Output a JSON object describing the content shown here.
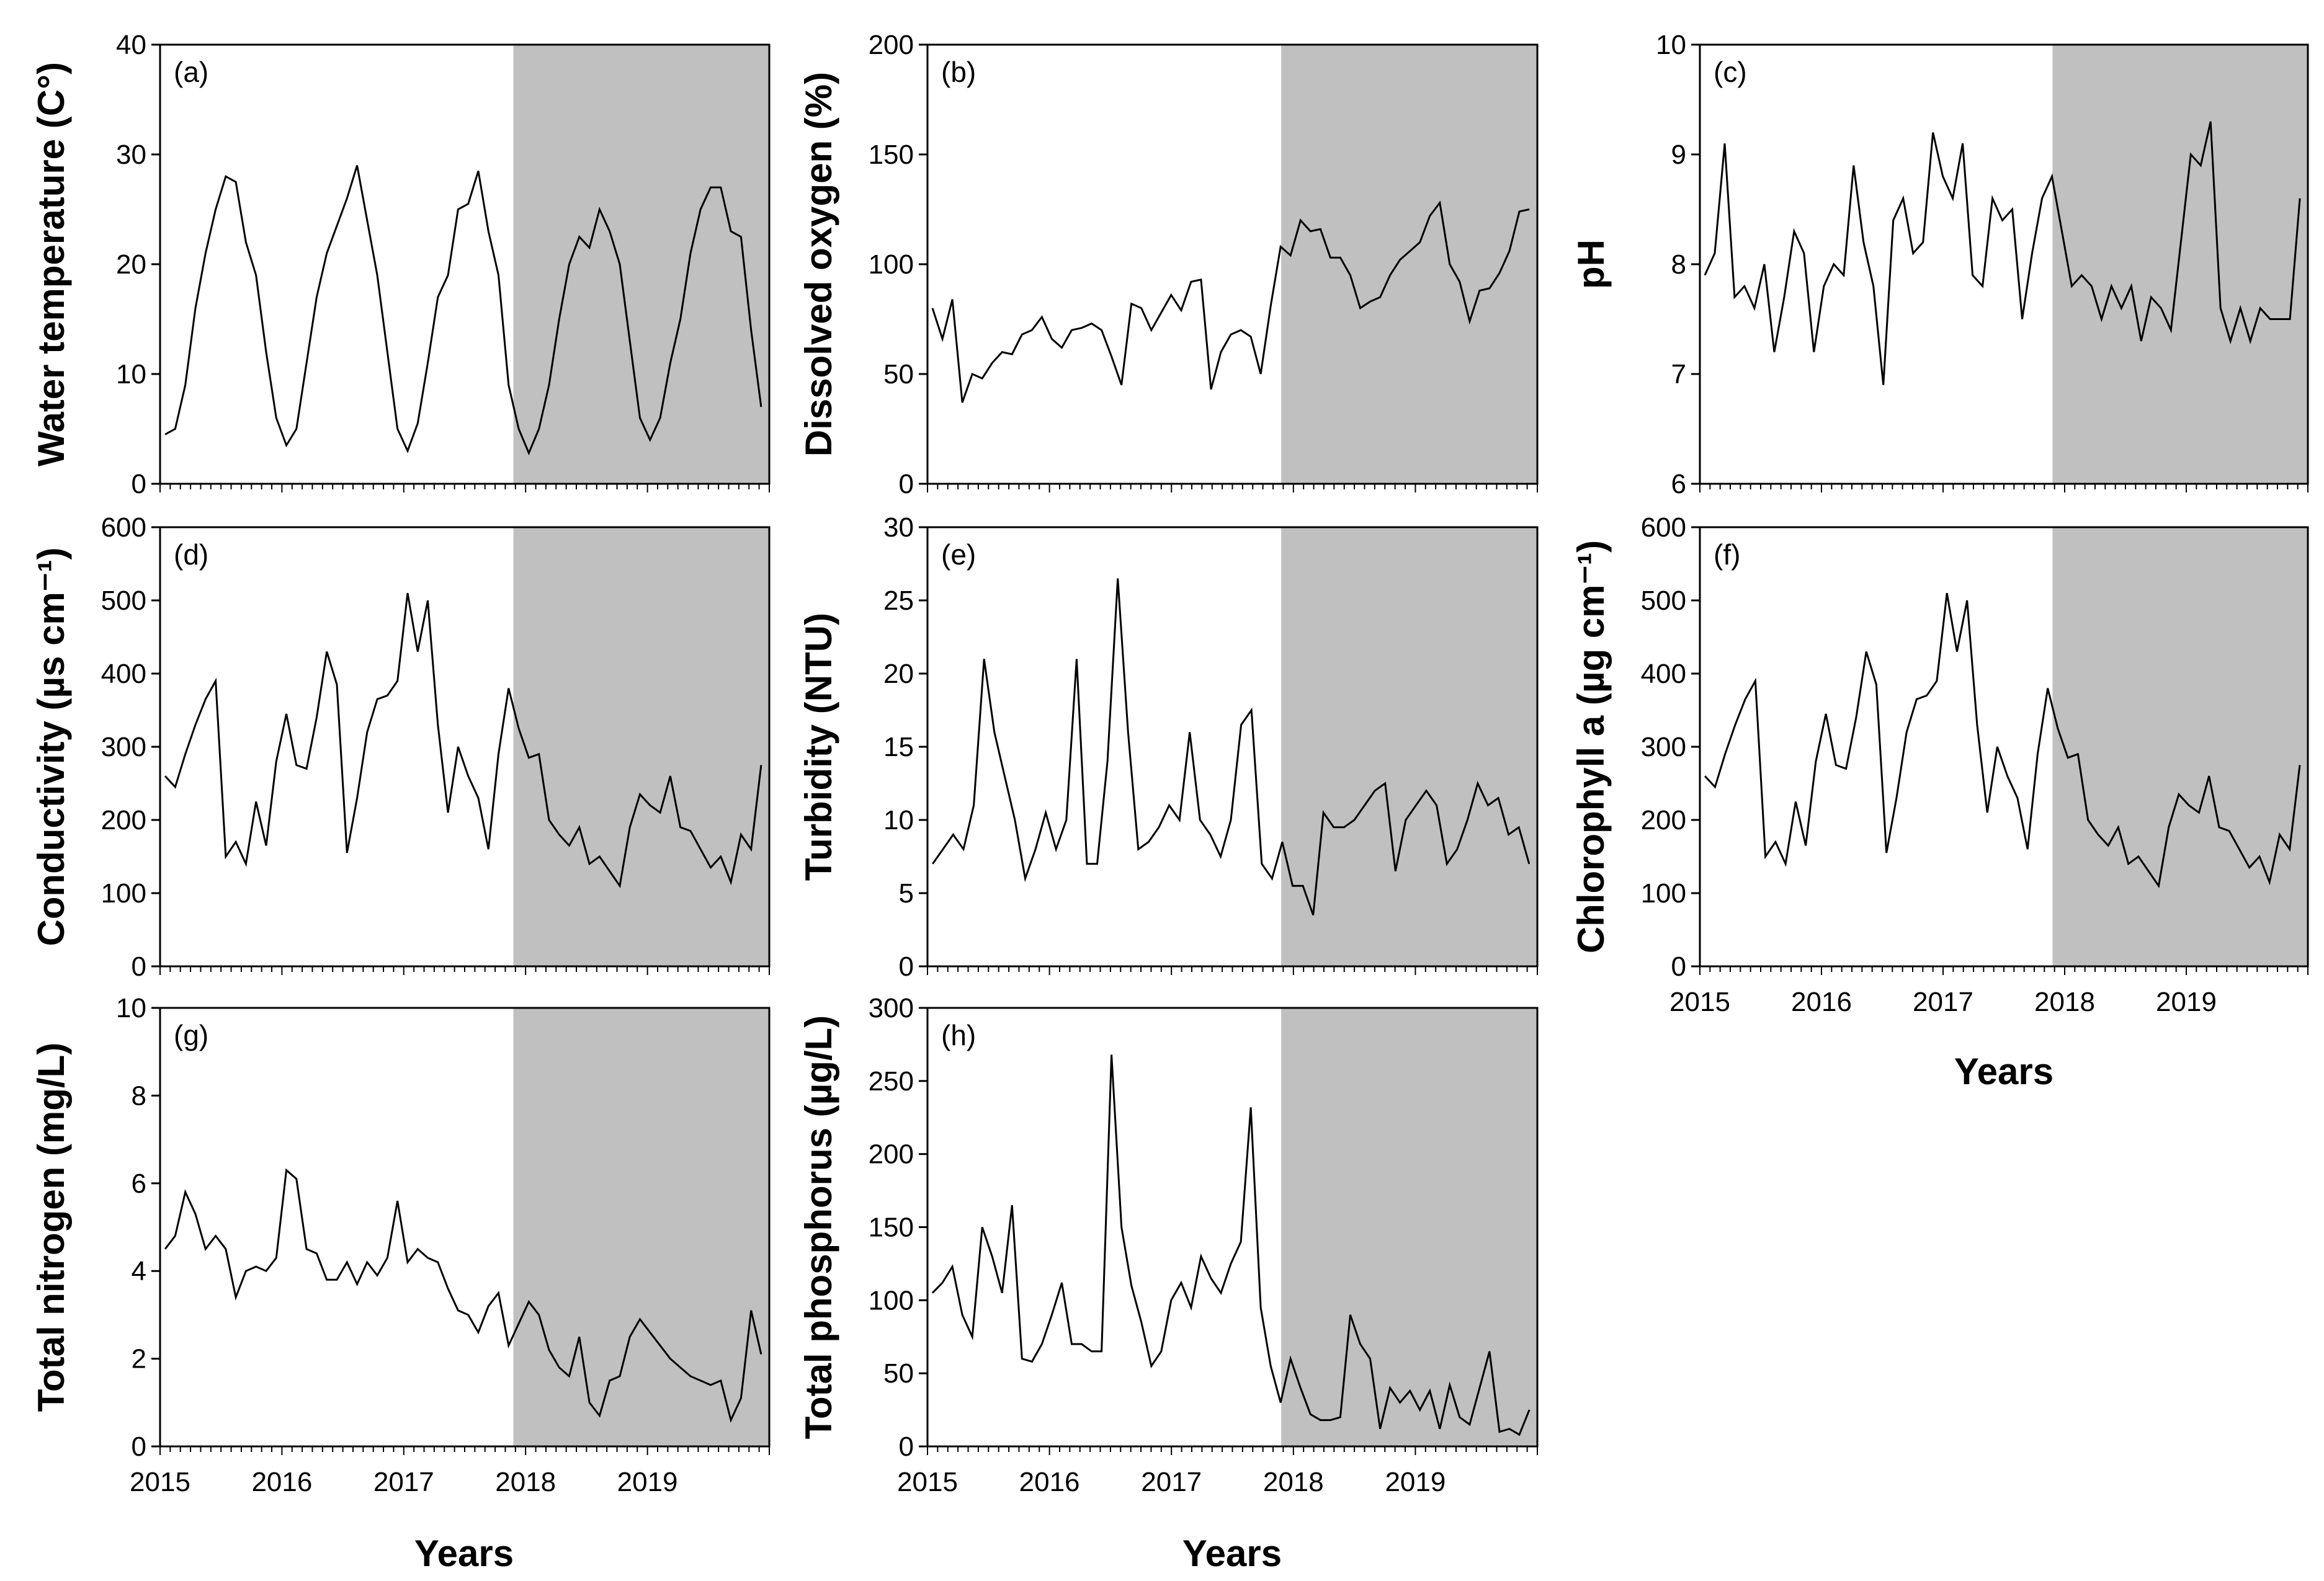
{
  "colors": {
    "shade": "#c0c0c0",
    "line": "#000000",
    "frame": "#000000"
  },
  "x_title": "Years",
  "x_tick_labels": [
    "2015",
    "2016",
    "2017",
    "2018",
    "2019"
  ],
  "chart_data": [
    {
      "id": "a",
      "type": "line",
      "panel_label": "(a)",
      "ylabel": "Water temperature (C°)",
      "ylim": [
        0,
        40
      ],
      "yticks": [
        0,
        10,
        20,
        30,
        40
      ],
      "xlim": [
        2015,
        2020
      ],
      "shade_start": 2017.9,
      "values": [
        4.5,
        5,
        9,
        16,
        21,
        25,
        28,
        27.5,
        22,
        19,
        12,
        6,
        3.5,
        5,
        11,
        17,
        21,
        23.5,
        26,
        29,
        24,
        19,
        12,
        5,
        3,
        5.5,
        11,
        17,
        19,
        25,
        25.5,
        28.5,
        23,
        19,
        9,
        5,
        2.8,
        5,
        9,
        15,
        20,
        22.5,
        21.5,
        25,
        23,
        20,
        13,
        6,
        4,
        6,
        11,
        15,
        21,
        25,
        27,
        27,
        23,
        22.5,
        14,
        7
      ]
    },
    {
      "id": "b",
      "type": "line",
      "panel_label": "(b)",
      "ylabel": "Dissolved oxygen (%)",
      "ylim": [
        0,
        200
      ],
      "yticks": [
        0,
        50,
        100,
        150,
        200
      ],
      "xlim": [
        2015,
        2020
      ],
      "shade_start": 2017.9,
      "values": [
        80,
        66,
        84,
        37,
        50,
        48,
        55,
        60,
        59,
        68,
        70,
        76,
        66,
        62,
        70,
        71,
        73,
        70,
        58,
        45,
        82,
        80,
        70,
        78,
        86,
        79,
        92,
        93,
        43,
        60,
        68,
        70,
        67,
        50,
        81,
        108,
        104,
        120,
        115,
        116,
        103,
        103,
        95,
        80,
        83,
        85,
        95,
        102,
        106,
        110,
        122,
        128,
        100,
        92,
        74,
        88,
        89,
        96,
        106,
        124,
        125
      ]
    },
    {
      "id": "c",
      "type": "line",
      "panel_label": "(c)",
      "ylabel": "pH",
      "ylim": [
        6,
        10
      ],
      "yticks": [
        6,
        7,
        8,
        9,
        10
      ],
      "xlim": [
        2015,
        2020
      ],
      "shade_start": 2017.9,
      "values": [
        7.9,
        8.1,
        9.1,
        7.7,
        7.8,
        7.6,
        8.0,
        7.2,
        7.7,
        8.3,
        8.1,
        7.2,
        7.8,
        8.0,
        7.9,
        8.9,
        8.2,
        7.8,
        6.9,
        8.4,
        8.6,
        8.1,
        8.2,
        9.2,
        8.8,
        8.6,
        9.1,
        7.9,
        7.8,
        8.6,
        8.4,
        8.5,
        7.5,
        8.1,
        8.6,
        8.8,
        8.3,
        7.8,
        7.9,
        7.8,
        7.5,
        7.8,
        7.6,
        7.8,
        7.3,
        7.7,
        7.6,
        7.4,
        8.2,
        9.0,
        8.9,
        9.3,
        7.6,
        7.3,
        7.6,
        7.3,
        7.6,
        7.5,
        7.5,
        7.5,
        8.6
      ]
    },
    {
      "id": "d",
      "type": "line",
      "panel_label": "(d)",
      "ylabel": "Conductivity (µs cm⁻¹)",
      "ylim": [
        0,
        600
      ],
      "yticks": [
        0,
        100,
        200,
        300,
        400,
        500,
        600
      ],
      "xlim": [
        2015,
        2020
      ],
      "shade_start": 2017.9,
      "values": [
        260,
        245,
        290,
        330,
        365,
        390,
        150,
        170,
        140,
        225,
        165,
        280,
        345,
        275,
        270,
        340,
        430,
        385,
        155,
        230,
        320,
        365,
        370,
        390,
        510,
        430,
        500,
        330,
        210,
        300,
        260,
        230,
        160,
        290,
        380,
        325,
        285,
        290,
        200,
        180,
        165,
        190,
        140,
        150,
        130,
        110,
        190,
        235,
        220,
        210,
        260,
        190,
        185,
        160,
        135,
        150,
        115,
        180,
        160,
        275
      ]
    },
    {
      "id": "e",
      "type": "line",
      "panel_label": "(e)",
      "ylabel": "Turbidity (NTU)",
      "ylim": [
        0,
        30
      ],
      "yticks": [
        0,
        5,
        10,
        15,
        20,
        25,
        30
      ],
      "xlim": [
        2015,
        2020
      ],
      "shade_start": 2017.9,
      "values": [
        7,
        8,
        9,
        8,
        11,
        21,
        16,
        13,
        10,
        6,
        8,
        10.5,
        8,
        10,
        21,
        7,
        7,
        14,
        26.5,
        16,
        8,
        8.5,
        9.5,
        11,
        10,
        16,
        10,
        9,
        7.5,
        10,
        16.5,
        17.5,
        7,
        6,
        8.5,
        5.5,
        5.5,
        3.5,
        10.5,
        9.5,
        9.5,
        10,
        11,
        12,
        12.5,
        6.5,
        10,
        11,
        12,
        11,
        7,
        8,
        10,
        12.5,
        11,
        11.5,
        9,
        9.5,
        7
      ]
    },
    {
      "id": "f",
      "type": "line",
      "panel_label": "(f)",
      "ylabel": "Chlorophyll a (µg cm⁻¹)",
      "ylim": [
        0,
        600
      ],
      "yticks": [
        0,
        100,
        200,
        300,
        400,
        500,
        600
      ],
      "xlim": [
        2015,
        2020
      ],
      "shade_start": 2017.9,
      "values": [
        260,
        245,
        290,
        330,
        365,
        390,
        150,
        170,
        140,
        225,
        165,
        280,
        345,
        275,
        270,
        340,
        430,
        385,
        155,
        230,
        320,
        365,
        370,
        390,
        510,
        430,
        500,
        330,
        210,
        300,
        260,
        230,
        160,
        290,
        380,
        325,
        285,
        290,
        200,
        180,
        165,
        190,
        140,
        150,
        130,
        110,
        190,
        235,
        220,
        210,
        260,
        190,
        185,
        160,
        135,
        150,
        115,
        180,
        160,
        275
      ]
    },
    {
      "id": "g",
      "type": "line",
      "panel_label": "(g)",
      "ylabel": "Total nitrogen (mg/L)",
      "ylim": [
        0,
        10
      ],
      "yticks": [
        0,
        2,
        4,
        6,
        8,
        10
      ],
      "xlim": [
        2015,
        2020
      ],
      "shade_start": 2017.9,
      "values": [
        4.5,
        4.8,
        5.8,
        5.3,
        4.5,
        4.8,
        4.5,
        3.4,
        4.0,
        4.1,
        4.0,
        4.3,
        6.3,
        6.1,
        4.5,
        4.4,
        3.8,
        3.8,
        4.2,
        3.7,
        4.2,
        3.9,
        4.3,
        5.6,
        4.2,
        4.5,
        4.3,
        4.2,
        3.6,
        3.1,
        3.0,
        2.6,
        3.2,
        3.5,
        2.3,
        2.8,
        3.3,
        3.0,
        2.2,
        1.8,
        1.6,
        2.5,
        1.0,
        0.7,
        1.5,
        1.6,
        2.5,
        2.9,
        2.6,
        2.3,
        2.0,
        1.8,
        1.6,
        1.5,
        1.4,
        1.5,
        0.6,
        1.1,
        3.1,
        2.1
      ]
    },
    {
      "id": "h",
      "type": "line",
      "panel_label": "(h)",
      "ylabel": "Total phosphorus (µg/L)",
      "ylim": [
        0,
        300
      ],
      "yticks": [
        0,
        50,
        100,
        150,
        200,
        250,
        300
      ],
      "xlim": [
        2015,
        2020
      ],
      "shade_start": 2017.9,
      "values": [
        105,
        112,
        123,
        90,
        75,
        150,
        130,
        105,
        165,
        60,
        58,
        70,
        90,
        112,
        70,
        70,
        65,
        65,
        268,
        150,
        110,
        85,
        55,
        65,
        100,
        112,
        95,
        130,
        115,
        105,
        125,
        140,
        232,
        95,
        55,
        30,
        60,
        40,
        22,
        18,
        18,
        20,
        90,
        70,
        60,
        12,
        40,
        30,
        38,
        25,
        38,
        12,
        42,
        20,
        15,
        40,
        65,
        10,
        12,
        8,
        25
      ]
    }
  ]
}
